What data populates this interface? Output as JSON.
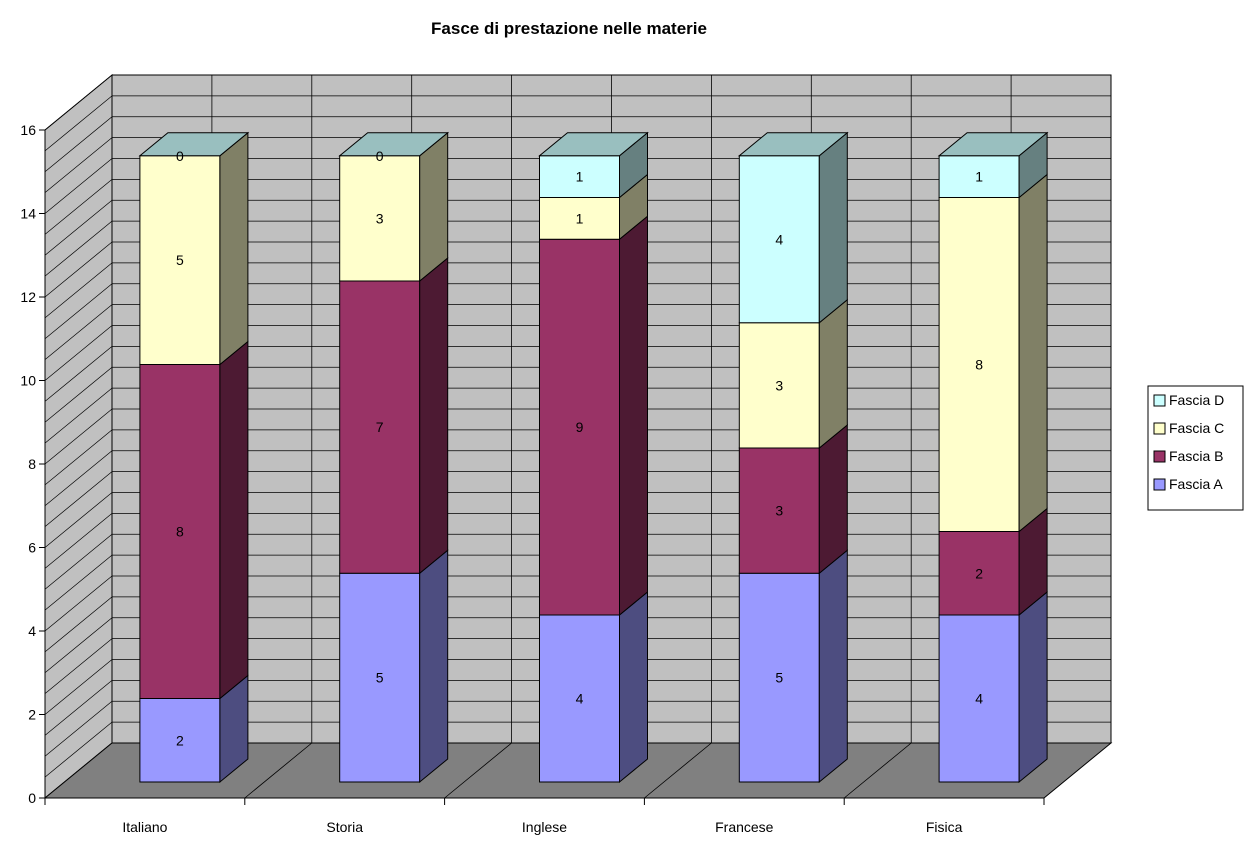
{
  "chart_data": {
    "type": "bar",
    "stacked": true,
    "three_d": true,
    "title": "Fasce di prestazione  nelle materie",
    "categories": [
      "Italiano",
      "Storia",
      "Inglese",
      "Francese",
      "Fisica"
    ],
    "series": [
      {
        "name": "Fascia A",
        "values": [
          2,
          5,
          4,
          5,
          4
        ],
        "color": "#9999ff"
      },
      {
        "name": "Fascia B",
        "values": [
          8,
          7,
          9,
          3,
          2
        ],
        "color": "#993366"
      },
      {
        "name": "Fascia C",
        "values": [
          5,
          3,
          1,
          3,
          8
        ],
        "color": "#ffffcc"
      },
      {
        "name": "Fascia D",
        "values": [
          0,
          0,
          1,
          4,
          1
        ],
        "color": "#ccffff"
      }
    ],
    "ylim": [
      0,
      16
    ],
    "yticks": [
      0,
      2,
      4,
      6,
      8,
      10,
      12,
      14,
      16
    ],
    "ytick_labels": [
      "0",
      "2",
      "4",
      "6",
      "8",
      "10",
      "12",
      "14",
      "16"
    ],
    "grid": true,
    "legend_position": "right",
    "legend_order": [
      "Fascia D",
      "Fascia C",
      "Fascia B",
      "Fascia A"
    ],
    "colors": {
      "wall": "#c0c0c0",
      "floor": "#808080",
      "gridline": "#000000"
    }
  }
}
